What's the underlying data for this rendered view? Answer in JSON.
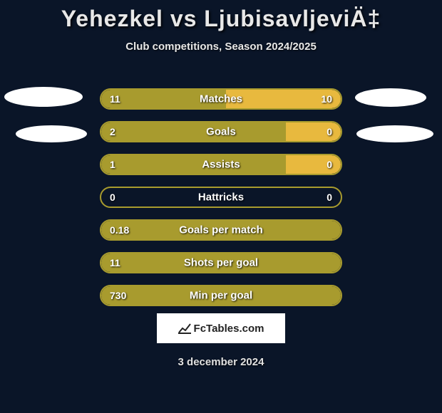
{
  "title": "Yehezkel vs LjubisavljeviÄ‡",
  "subtitle": "Club competitions, Season 2024/2025",
  "date": "3 december 2024",
  "logo_text": "FcTables.com",
  "colors": {
    "background": "#0a1528",
    "bar_primary": "#a89b2e",
    "bar_secondary": "#e8b93e",
    "bar_border": "#a89b2e",
    "text": "#ffffff"
  },
  "bars": [
    {
      "label": "Matches",
      "left_val": "11",
      "right_val": "10",
      "left_pct": 52,
      "right_pct": 48,
      "left_color": "#a89b2e",
      "right_color": "#e8b93e"
    },
    {
      "label": "Goals",
      "left_val": "2",
      "right_val": "0",
      "left_pct": 77,
      "right_pct": 23,
      "left_color": "#a89b2e",
      "right_color": "#e8b93e"
    },
    {
      "label": "Assists",
      "left_val": "1",
      "right_val": "0",
      "left_pct": 77,
      "right_pct": 23,
      "left_color": "#a89b2e",
      "right_color": "#e8b93e"
    },
    {
      "label": "Hattricks",
      "left_val": "0",
      "right_val": "0",
      "left_pct": 0,
      "right_pct": 0,
      "left_color": "#a89b2e",
      "right_color": "#a89b2e"
    },
    {
      "label": "Goals per match",
      "left_val": "0.18",
      "right_val": "",
      "left_pct": 100,
      "right_pct": 0,
      "left_color": "#a89b2e",
      "right_color": "#a89b2e"
    },
    {
      "label": "Shots per goal",
      "left_val": "11",
      "right_val": "",
      "left_pct": 100,
      "right_pct": 0,
      "left_color": "#a89b2e",
      "right_color": "#a89b2e"
    },
    {
      "label": "Min per goal",
      "left_val": "730",
      "right_val": "",
      "left_pct": 100,
      "right_pct": 0,
      "left_color": "#a89b2e",
      "right_color": "#a89b2e"
    }
  ]
}
